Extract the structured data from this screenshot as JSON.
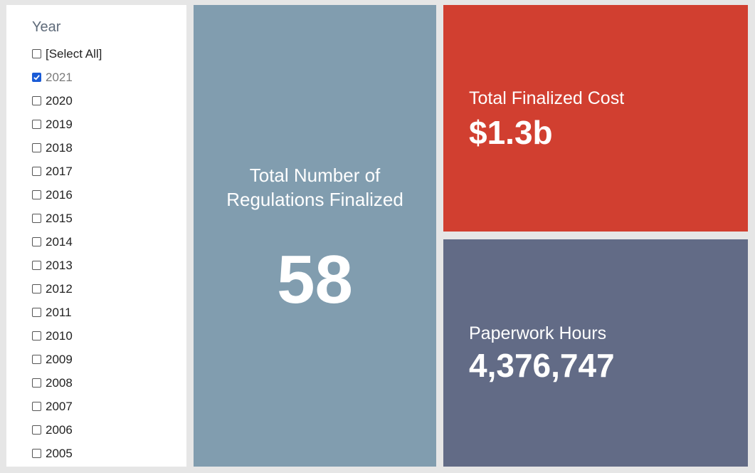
{
  "filter": {
    "title": "Year",
    "items": [
      {
        "label": "[Select All]",
        "checked": false
      },
      {
        "label": "2021",
        "checked": true
      },
      {
        "label": "2020",
        "checked": false
      },
      {
        "label": "2019",
        "checked": false
      },
      {
        "label": "2018",
        "checked": false
      },
      {
        "label": "2017",
        "checked": false
      },
      {
        "label": "2016",
        "checked": false
      },
      {
        "label": "2015",
        "checked": false
      },
      {
        "label": "2014",
        "checked": false
      },
      {
        "label": "2013",
        "checked": false
      },
      {
        "label": "2012",
        "checked": false
      },
      {
        "label": "2011",
        "checked": false
      },
      {
        "label": "2010",
        "checked": false
      },
      {
        "label": "2009",
        "checked": false
      },
      {
        "label": "2008",
        "checked": false
      },
      {
        "label": "2007",
        "checked": false
      },
      {
        "label": "2006",
        "checked": false
      },
      {
        "label": "2005",
        "checked": false
      }
    ]
  },
  "tiles": {
    "regulations": {
      "label": "Total Number of Regulations Finalized",
      "value": "58",
      "color": "#819daf"
    },
    "cost": {
      "label": "Total Finalized Cost",
      "value": "$1.3b",
      "color": "#d13f30"
    },
    "hours": {
      "label": "Paperwork Hours",
      "value": "4,376,747",
      "color": "#626b86"
    }
  },
  "colors": {
    "checkbox_checked": "#1a5bd6",
    "background": "#e6e6e6"
  }
}
